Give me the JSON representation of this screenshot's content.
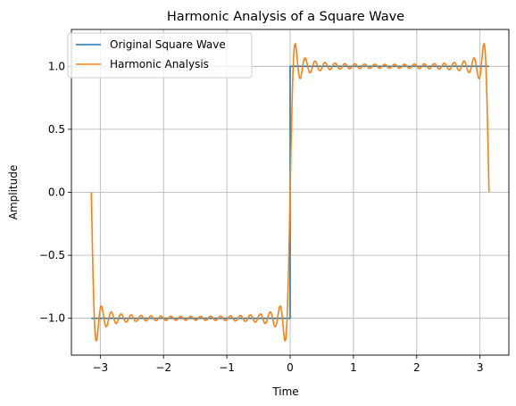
{
  "chart_data": {
    "type": "line",
    "title": "Harmonic Analysis of a Square Wave",
    "xlabel": "Time",
    "ylabel": "Amplitude",
    "xlim": [
      -3.4558,
      3.4558
    ],
    "ylim": [
      -1.2924,
      1.2924
    ],
    "xticks": [
      -3,
      -2,
      -1,
      0,
      1,
      2,
      3
    ],
    "xtick_labels": [
      "−3",
      "−2",
      "−1",
      "0",
      "1",
      "2",
      "3"
    ],
    "yticks": [
      -1.0,
      -0.5,
      0.0,
      0.5,
      1.0
    ],
    "ytick_labels": [
      "−1.0",
      "−0.5",
      "0.0",
      "0.5",
      "1.0"
    ],
    "grid": true,
    "legend_position": "upper left",
    "series": [
      {
        "name": "Original Square Wave",
        "color": "#1f77b4",
        "kind": "step",
        "x": [
          -3.1416,
          0,
          0,
          3.1416
        ],
        "y": [
          -1,
          -1,
          1,
          1
        ]
      },
      {
        "name": "Harmonic Analysis",
        "color": "#ff7f0e",
        "kind": "fourier_partial_sum",
        "harmonics": [
          1,
          3,
          5,
          7,
          9,
          11,
          13,
          15,
          17,
          19,
          21,
          23,
          25,
          27,
          29,
          31,
          33,
          35,
          37,
          39
        ],
        "x_range": [
          -3.1416,
          3.1416
        ]
      }
    ]
  }
}
